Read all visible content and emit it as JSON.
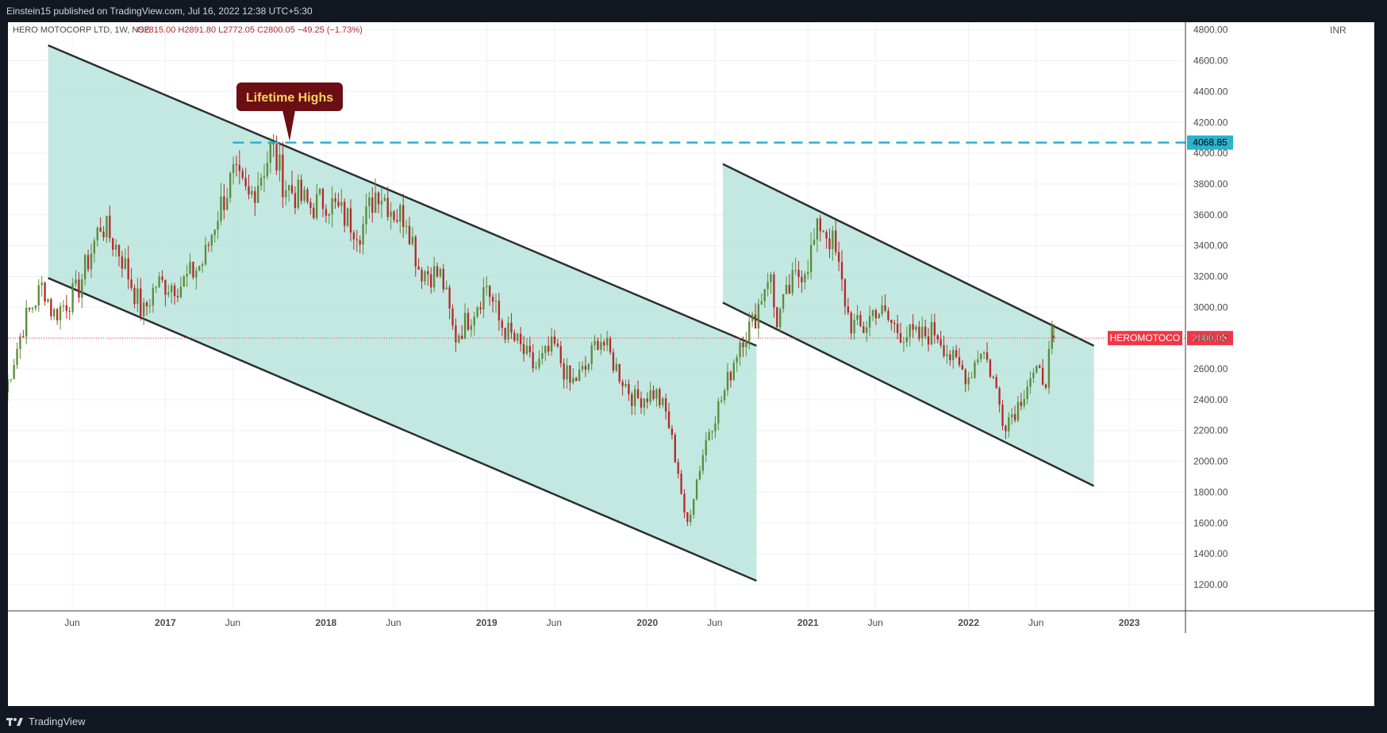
{
  "header": {
    "publish_line": "Einstein15 published on TradingView.com, Jul 16, 2022 12:38 UTC+5:30"
  },
  "footer": {
    "brand": "TradingView",
    "logo_icon": "tradingview-logo-icon"
  },
  "chart_data": {
    "type": "candlestick",
    "symbol_line": "HERO MOTOCORP LTD, 1W, NSE",
    "ohlc_line": "O2815.00  H2891.80  L2772.05  C2800.05  −49.25 (−1.73%)",
    "currency_label": "INR",
    "y_ticks": [
      "1200.00",
      "1400.00",
      "1600.00",
      "1800.00",
      "2000.00",
      "2200.00",
      "2400.00",
      "2600.00",
      "2800.00",
      "3000.00",
      "3200.00",
      "3400.00",
      "3600.00",
      "3800.00",
      "4000.00",
      "4200.00",
      "4400.00",
      "4600.00",
      "4800.00"
    ],
    "ylim": [
      1030,
      4850
    ],
    "x_ticks": [
      {
        "label": "Jun",
        "t": 2016.42,
        "bold": false
      },
      {
        "label": "2017",
        "t": 2017.0,
        "bold": true
      },
      {
        "label": "Jun",
        "t": 2017.42,
        "bold": false
      },
      {
        "label": "2018",
        "t": 2018.0,
        "bold": true
      },
      {
        "label": "Jun",
        "t": 2018.42,
        "bold": false
      },
      {
        "label": "2019",
        "t": 2019.0,
        "bold": true
      },
      {
        "label": "Jun",
        "t": 2019.42,
        "bold": false
      },
      {
        "label": "2020",
        "t": 2020.0,
        "bold": true
      },
      {
        "label": "Jun",
        "t": 2020.42,
        "bold": false
      },
      {
        "label": "2021",
        "t": 2021.0,
        "bold": true
      },
      {
        "label": "Jun",
        "t": 2021.42,
        "bold": false
      },
      {
        "label": "2022",
        "t": 2022.0,
        "bold": true
      },
      {
        "label": "Jun",
        "t": 2022.42,
        "bold": false
      },
      {
        "label": "2023",
        "t": 2023.0,
        "bold": true
      }
    ],
    "xlim": [
      2016.02,
      2023.35
    ],
    "grid": true,
    "colors": {
      "up": "#5b8c3a",
      "down": "#b52a2a",
      "channel_fill": "#b8e4dc",
      "channel_line": "#2b2f33",
      "level_line": "#2bb3cf",
      "price_tag": "#f23645",
      "callout_bg": "#6b0f14",
      "callout_text": "#ffd45a"
    },
    "last_price": {
      "value": 2800.05,
      "label": "2800.05",
      "symbol_tag": "HEROMOTOCO"
    },
    "lifetime_high_level": {
      "value": 4068.85,
      "label": "4068.85"
    },
    "annotation": {
      "text": "Lifetime Highs"
    },
    "channels": [
      {
        "name": "first",
        "upper": [
          [
            2016.27,
            4700
          ],
          [
            2020.68,
            2750
          ]
        ],
        "lower": [
          [
            2016.27,
            3190
          ],
          [
            2020.68,
            1225
          ]
        ]
      },
      {
        "name": "second",
        "upper": [
          [
            2020.47,
            3930
          ],
          [
            2022.78,
            2750
          ]
        ],
        "lower": [
          [
            2020.47,
            3030
          ],
          [
            2022.78,
            1840
          ]
        ]
      }
    ],
    "anchors": [
      [
        2016.0,
        2450
      ],
      [
        2016.12,
        2900
      ],
      [
        2016.24,
        3150
      ],
      [
        2016.3,
        2950
      ],
      [
        2016.45,
        3100
      ],
      [
        2016.6,
        3550
      ],
      [
        2016.72,
        3350
      ],
      [
        2016.86,
        2950
      ],
      [
        2016.94,
        3150
      ],
      [
        2017.1,
        3150
      ],
      [
        2017.24,
        3300
      ],
      [
        2017.32,
        3600
      ],
      [
        2017.42,
        3850
      ],
      [
        2017.52,
        3700
      ],
      [
        2017.63,
        3950
      ],
      [
        2017.66,
        4040
      ],
      [
        2017.74,
        3800
      ],
      [
        2017.9,
        3650
      ],
      [
        2018.0,
        3700
      ],
      [
        2018.1,
        3600
      ],
      [
        2018.22,
        3500
      ],
      [
        2018.32,
        3780
      ],
      [
        2018.44,
        3600
      ],
      [
        2018.5,
        3600
      ],
      [
        2018.58,
        3250
      ],
      [
        2018.72,
        3200
      ],
      [
        2018.8,
        2800
      ],
      [
        2018.9,
        2950
      ],
      [
        2019.0,
        3150
      ],
      [
        2019.08,
        2900
      ],
      [
        2019.2,
        2750
      ],
      [
        2019.3,
        2600
      ],
      [
        2019.42,
        2750
      ],
      [
        2019.52,
        2500
      ],
      [
        2019.62,
        2600
      ],
      [
        2019.7,
        2820
      ],
      [
        2019.82,
        2580
      ],
      [
        2019.92,
        2400
      ],
      [
        2020.05,
        2450
      ],
      [
        2020.12,
        2300
      ],
      [
        2020.2,
        1900
      ],
      [
        2020.24,
        1550
      ],
      [
        2020.3,
        1850
      ],
      [
        2020.38,
        2200
      ],
      [
        2020.48,
        2450
      ],
      [
        2020.58,
        2800
      ],
      [
        2020.66,
        2900
      ],
      [
        2020.76,
        3250
      ],
      [
        2020.8,
        2900
      ],
      [
        2020.9,
        3150
      ],
      [
        2021.0,
        3300
      ],
      [
        2021.08,
        3550
      ],
      [
        2021.16,
        3400
      ],
      [
        2021.26,
        2900
      ],
      [
        2021.34,
        2850
      ],
      [
        2021.42,
        3000
      ],
      [
        2021.56,
        2850
      ],
      [
        2021.68,
        2800
      ],
      [
        2021.8,
        2850
      ],
      [
        2021.9,
        2650
      ],
      [
        2022.0,
        2550
      ],
      [
        2022.08,
        2750
      ],
      [
        2022.15,
        2550
      ],
      [
        2022.22,
        2250
      ],
      [
        2022.3,
        2350
      ],
      [
        2022.38,
        2550
      ],
      [
        2022.48,
        2550
      ],
      [
        2022.52,
        2800
      ]
    ],
    "last_candle": {
      "t": 2022.53,
      "o": 2815.0,
      "h": 2891.8,
      "l": 2772.05,
      "c": 2800.05
    }
  }
}
